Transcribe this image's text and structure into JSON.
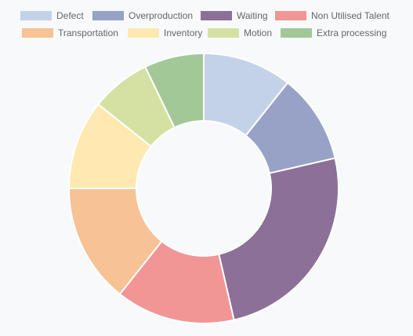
{
  "chart_data": {
    "type": "pie",
    "variant": "doughnut",
    "legend_position": "top",
    "categories": [
      "Defect",
      "Overproduction",
      "Waiting",
      "Non Utilised Talent",
      "Transportation",
      "Inventory",
      "Motion",
      "Extra processing"
    ],
    "values": [
      10.7,
      10.7,
      25,
      14.3,
      14.3,
      10.7,
      7.15,
      7.15
    ],
    "colors": [
      "#c3d2e8",
      "#98a2c6",
      "#8c7098",
      "#f29595",
      "#f7c294",
      "#ffe9b0",
      "#d5e1a2",
      "#a2c897"
    ]
  }
}
